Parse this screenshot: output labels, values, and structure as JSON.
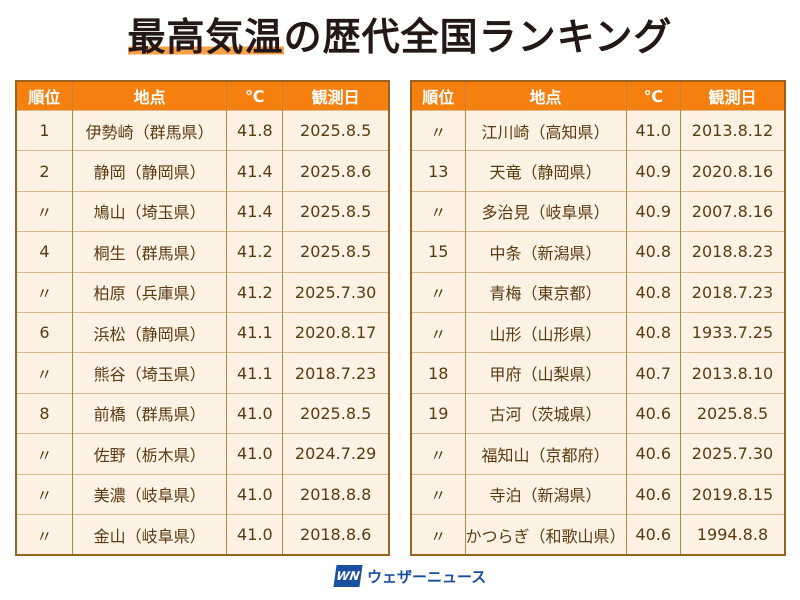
{
  "title": {
    "highlight": "最高気温",
    "rest": "の歴代全国ランキング"
  },
  "chart_data": {
    "type": "table",
    "columns": [
      "順位",
      "地点",
      "℃",
      "観測日"
    ],
    "rows_left": [
      [
        "1",
        "伊勢崎（群馬県）",
        "41.8",
        "2025.8.5"
      ],
      [
        "2",
        "静岡（静岡県）",
        "41.4",
        "2025.8.6"
      ],
      [
        "〃",
        "鳩山（埼玉県）",
        "41.4",
        "2025.8.5"
      ],
      [
        "4",
        "桐生（群馬県）",
        "41.2",
        "2025.8.5"
      ],
      [
        "〃",
        "柏原（兵庫県）",
        "41.2",
        "2025.7.30"
      ],
      [
        "6",
        "浜松（静岡県）",
        "41.1",
        "2020.8.17"
      ],
      [
        "〃",
        "熊谷（埼玉県）",
        "41.1",
        "2018.7.23"
      ],
      [
        "8",
        "前橋（群馬県）",
        "41.0",
        "2025.8.5"
      ],
      [
        "〃",
        "佐野（栃木県）",
        "41.0",
        "2024.7.29"
      ],
      [
        "〃",
        "美濃（岐阜県）",
        "41.0",
        "2018.8.8"
      ],
      [
        "〃",
        "金山（岐阜県）",
        "41.0",
        "2018.8.6"
      ]
    ],
    "rows_right": [
      [
        "〃",
        "江川崎（高知県）",
        "41.0",
        "2013.8.12"
      ],
      [
        "13",
        "天竜（静岡県）",
        "40.9",
        "2020.8.16"
      ],
      [
        "〃",
        "多治見（岐阜県）",
        "40.9",
        "2007.8.16"
      ],
      [
        "15",
        "中条（新潟県）",
        "40.8",
        "2018.8.23"
      ],
      [
        "〃",
        "青梅（東京都）",
        "40.8",
        "2018.7.23"
      ],
      [
        "〃",
        "山形（山形県）",
        "40.8",
        "1933.7.25"
      ],
      [
        "18",
        "甲府（山梨県）",
        "40.7",
        "2013.8.10"
      ],
      [
        "19",
        "古河（茨城県）",
        "40.6",
        "2025.8.5"
      ],
      [
        "〃",
        "福知山（京都府）",
        "40.6",
        "2025.7.30"
      ],
      [
        "〃",
        "寺泊（新潟県）",
        "40.6",
        "2019.8.15"
      ],
      [
        "〃",
        "かつらぎ（和歌山県）",
        "40.6",
        "1994.8.8"
      ]
    ]
  },
  "colors": {
    "header": "#f57f0f",
    "row": "#fdf2e4",
    "border": "#9a6322",
    "highlight": "#f7a04a",
    "brand": "#1a4fa0"
  },
  "logo": {
    "mark": "WN",
    "text": "ウェザーニュース"
  }
}
